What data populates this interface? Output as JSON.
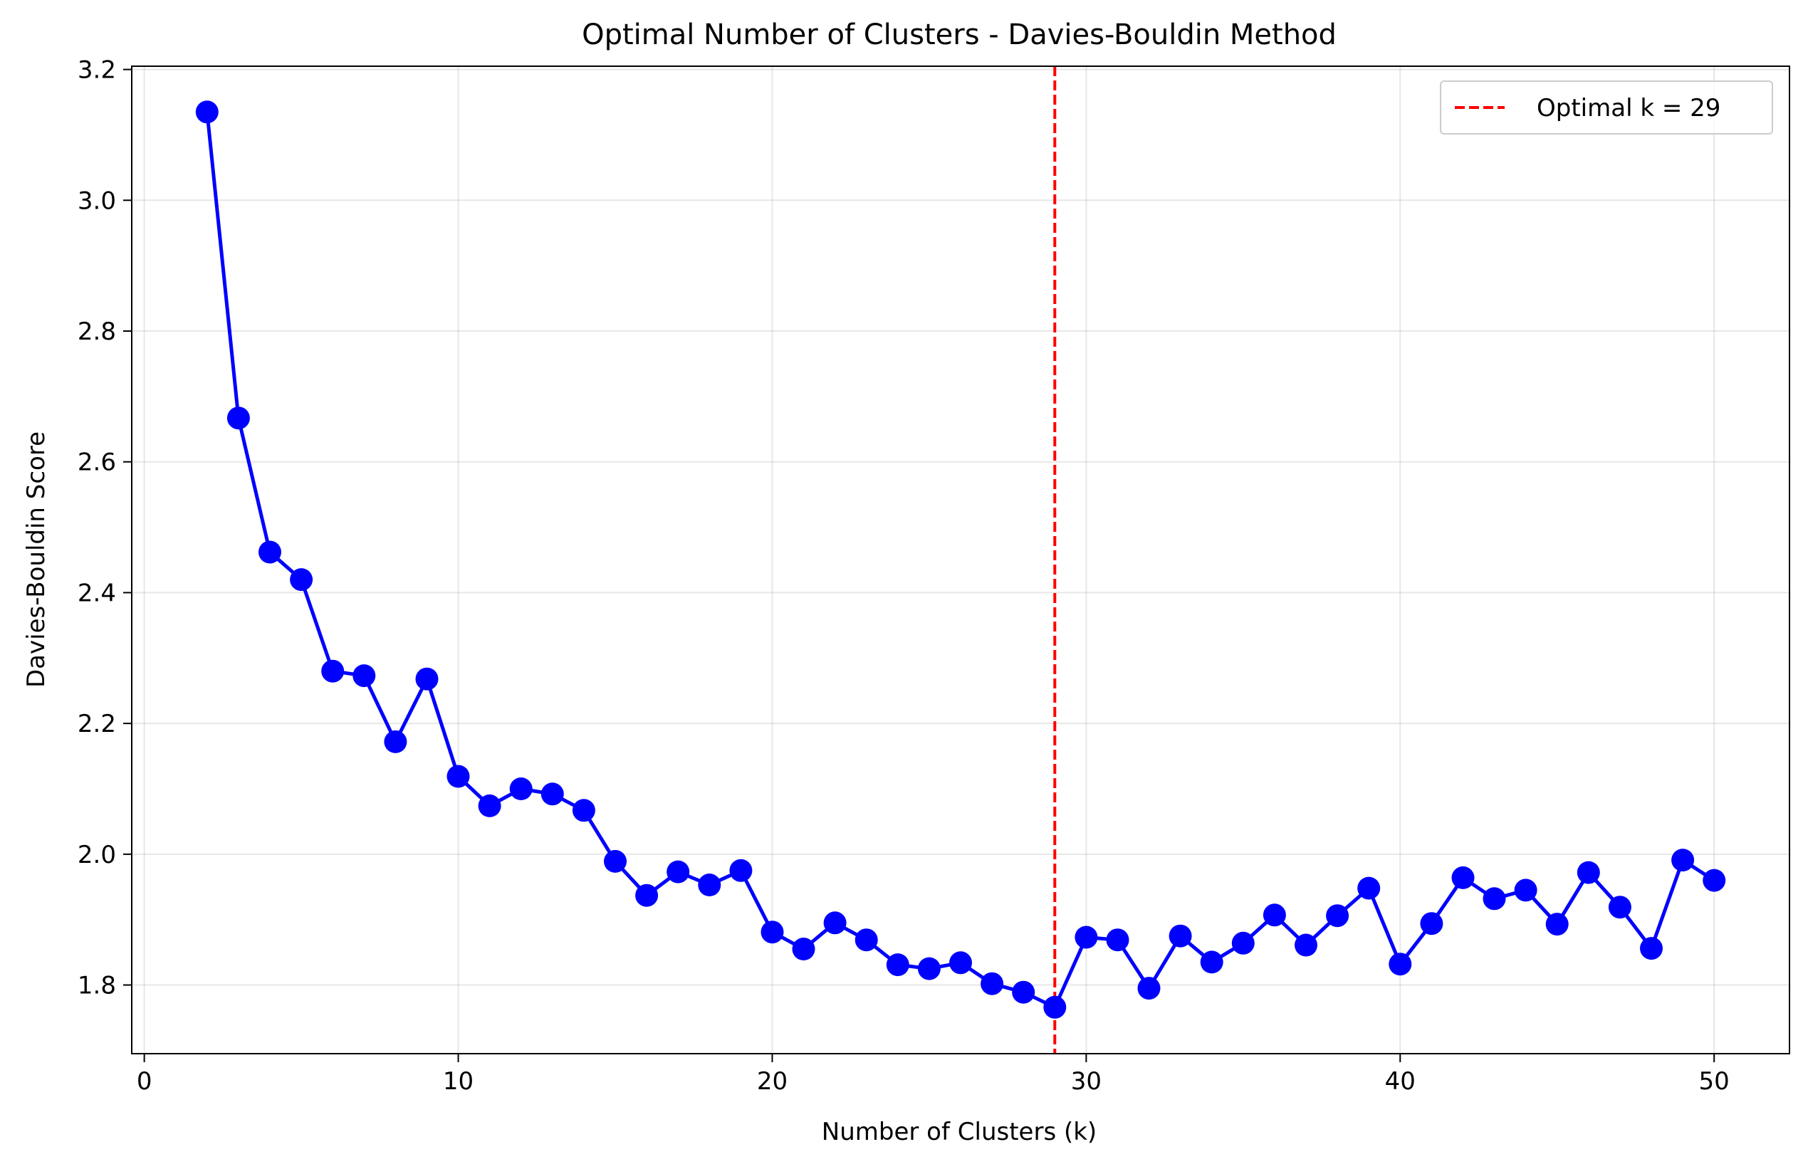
{
  "chart_data": {
    "type": "line",
    "title": "Optimal Number of Clusters - Davies-Bouldin Method",
    "xlabel": "Number of Clusters (k)",
    "ylabel": "Davies-Bouldin Score",
    "xlim": [
      -0.4,
      52.4
    ],
    "ylim": [
      1.695,
      3.205
    ],
    "xticks": [
      0,
      10,
      20,
      30,
      40,
      50
    ],
    "xtick_labels": [
      "0",
      "10",
      "20",
      "30",
      "40",
      "50"
    ],
    "yticks": [
      1.8,
      2.0,
      2.2,
      2.4,
      2.6,
      2.8,
      3.0,
      3.2
    ],
    "ytick_labels": [
      "1.8",
      "2.0",
      "2.2",
      "2.4",
      "2.6",
      "2.8",
      "3.0",
      "3.2"
    ],
    "grid": true,
    "legend_position": "top-right",
    "series": [
      {
        "color": "#0000ff",
        "marker": "circle",
        "x": [
          2,
          3,
          4,
          5,
          6,
          7,
          8,
          9,
          10,
          11,
          12,
          13,
          14,
          15,
          16,
          17,
          18,
          19,
          20,
          21,
          22,
          23,
          24,
          25,
          26,
          27,
          28,
          29,
          30,
          31,
          32,
          33,
          34,
          35,
          36,
          37,
          38,
          39,
          40,
          41,
          42,
          43,
          44,
          45,
          46,
          47,
          48,
          49,
          50
        ],
        "values": [
          3.135,
          2.667,
          2.462,
          2.42,
          2.28,
          2.273,
          2.172,
          2.268,
          2.119,
          2.074,
          2.1,
          2.092,
          2.067,
          1.989,
          1.937,
          1.973,
          1.953,
          1.975,
          1.881,
          1.855,
          1.895,
          1.869,
          1.831,
          1.825,
          1.834,
          1.802,
          1.789,
          1.766,
          1.873,
          1.869,
          1.795,
          1.875,
          1.835,
          1.864,
          1.907,
          1.861,
          1.906,
          1.948,
          1.832,
          1.894,
          1.964,
          1.932,
          1.945,
          1.893,
          1.972,
          1.919,
          1.856,
          1.991,
          1.96
        ]
      }
    ],
    "annotations": [
      {
        "type": "vline",
        "x": 29,
        "color": "#ff0000",
        "style": "dashed",
        "label": "Optimal k = 29"
      }
    ],
    "legend": {
      "entries": [
        "Optimal k = 29"
      ]
    }
  }
}
